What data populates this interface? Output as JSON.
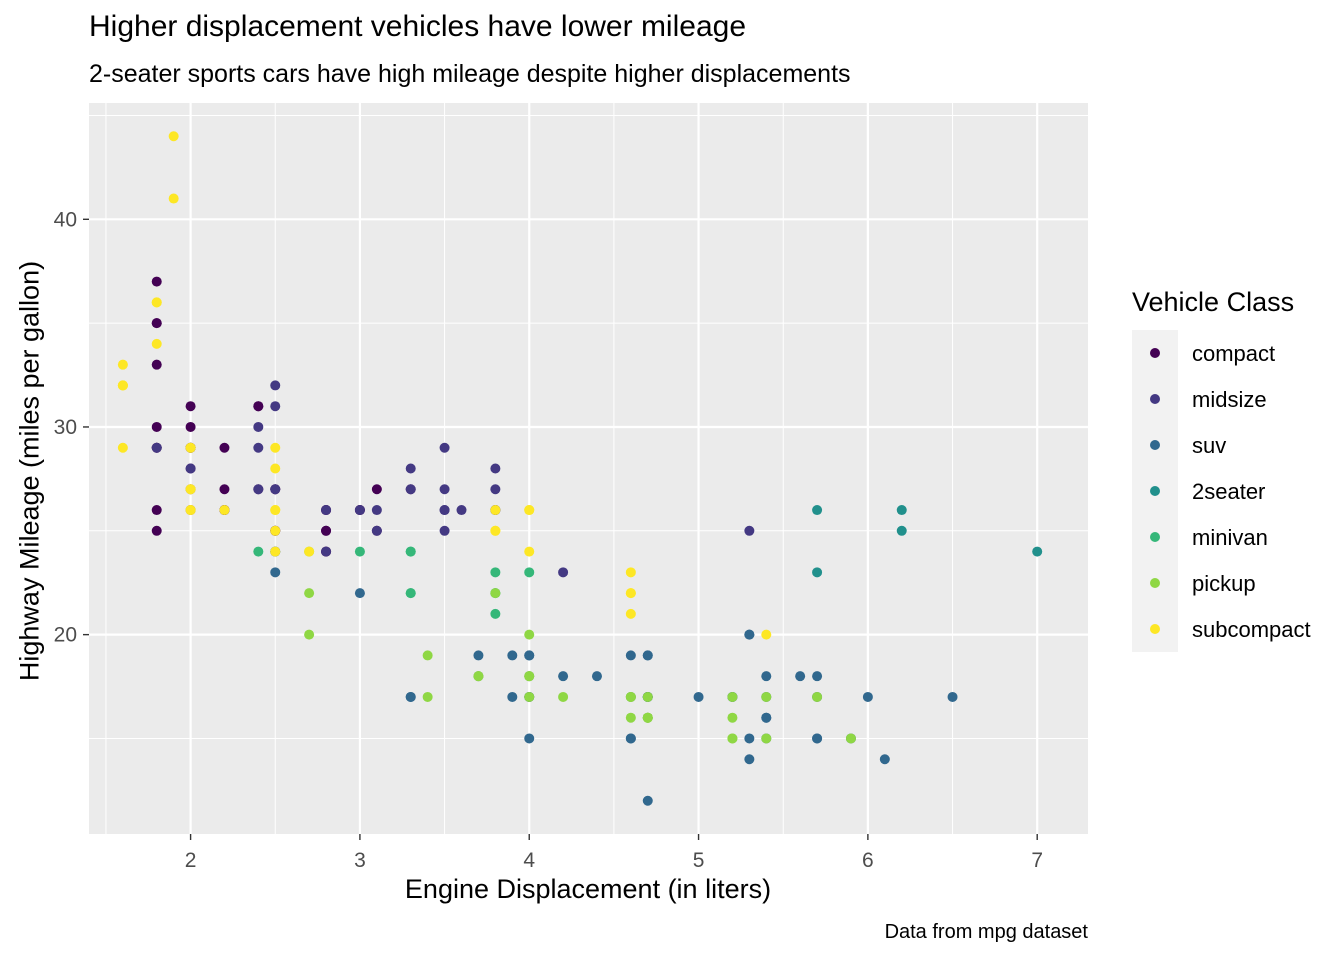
{
  "chart_data": {
    "type": "scatter",
    "title": "Higher displacement vehicles have lower mileage",
    "subtitle": "2-seater sports cars have high mileage despite higher displacements",
    "caption": "Data from mpg dataset",
    "xlabel": "Engine Displacement (in liters)",
    "ylabel": "Highway Mileage (miles per gallon)",
    "xlim": [
      1.4,
      7.3
    ],
    "ylim": [
      10.4,
      45.6
    ],
    "xticks": [
      2,
      3,
      4,
      5,
      6,
      7
    ],
    "yticks": [
      20,
      30,
      40
    ],
    "grid": true,
    "legend_title": "Vehicle Class",
    "legend_position": "right",
    "series": [
      {
        "name": "compact",
        "color": "#440154",
        "points": [
          [
            1.8,
            29
          ],
          [
            1.8,
            29
          ],
          [
            2.0,
            31
          ],
          [
            2.0,
            30
          ],
          [
            2.8,
            26
          ],
          [
            2.8,
            26
          ],
          [
            3.1,
            27
          ],
          [
            1.8,
            26
          ],
          [
            1.8,
            25
          ],
          [
            2.0,
            28
          ],
          [
            2.0,
            27
          ],
          [
            2.8,
            25
          ],
          [
            2.8,
            25
          ],
          [
            3.1,
            25
          ],
          [
            2.2,
            27
          ],
          [
            2.2,
            29
          ],
          [
            2.4,
            31
          ],
          [
            2.4,
            31
          ],
          [
            3.0,
            26
          ],
          [
            3.0,
            26
          ],
          [
            3.3,
            27
          ],
          [
            1.8,
            30
          ],
          [
            1.8,
            33
          ],
          [
            1.8,
            35
          ],
          [
            1.8,
            37
          ],
          [
            1.8,
            35
          ],
          [
            2.0,
            29
          ],
          [
            2.0,
            26
          ],
          [
            2.0,
            29
          ],
          [
            2.0,
            29
          ],
          [
            2.8,
            24
          ],
          [
            2.8,
            24
          ],
          [
            2.5,
            27
          ],
          [
            2.5,
            27
          ],
          [
            2.5,
            25
          ],
          [
            2.5,
            25
          ],
          [
            2.2,
            26
          ],
          [
            2.2,
            26
          ],
          [
            2.4,
            27
          ]
        ]
      },
      {
        "name": "midsize",
        "color": "#443983",
        "points": [
          [
            2.8,
            24
          ],
          [
            3.1,
            25
          ],
          [
            4.2,
            23
          ],
          [
            2.4,
            30
          ],
          [
            2.4,
            29
          ],
          [
            3.3,
            28
          ],
          [
            3.5,
            29
          ],
          [
            3.5,
            27
          ],
          [
            3.8,
            26
          ],
          [
            3.8,
            26
          ],
          [
            3.8,
            28
          ],
          [
            3.8,
            27
          ],
          [
            5.3,
            25
          ],
          [
            2.5,
            32
          ],
          [
            2.5,
            31
          ],
          [
            2.4,
            27
          ],
          [
            3.5,
            26
          ],
          [
            3.5,
            25
          ],
          [
            3.0,
            26
          ],
          [
            3.1,
            26
          ],
          [
            3.3,
            27
          ],
          [
            3.6,
            26
          ],
          [
            1.8,
            29
          ],
          [
            2.0,
            28
          ],
          [
            2.8,
            26
          ],
          [
            2.5,
            27
          ],
          [
            3.5,
            26
          ]
        ]
      },
      {
        "name": "suv",
        "color": "#31688E",
        "points": [
          [
            5.3,
            20
          ],
          [
            5.3,
            15
          ],
          [
            5.3,
            20
          ],
          [
            5.7,
            17
          ],
          [
            6.5,
            17
          ],
          [
            4.7,
            19
          ],
          [
            4.7,
            17
          ],
          [
            4.7,
            12
          ],
          [
            5.2,
            17
          ],
          [
            5.9,
            15
          ],
          [
            4.7,
            17
          ],
          [
            5.2,
            17
          ],
          [
            4.0,
            19
          ],
          [
            4.0,
            17
          ],
          [
            4.6,
            19
          ],
          [
            5.0,
            17
          ],
          [
            4.0,
            15
          ],
          [
            4.6,
            15
          ],
          [
            5.4,
            18
          ],
          [
            5.4,
            17
          ],
          [
            5.4,
            16
          ],
          [
            4.7,
            17
          ],
          [
            5.7,
            18
          ],
          [
            6.1,
            14
          ],
          [
            4.0,
            18
          ],
          [
            4.2,
            18
          ],
          [
            4.4,
            18
          ],
          [
            4.6,
            17
          ],
          [
            5.4,
            15
          ],
          [
            5.7,
            15
          ],
          [
            4.0,
            17
          ],
          [
            5.4,
            16
          ],
          [
            2.5,
            23
          ],
          [
            2.5,
            24
          ],
          [
            3.0,
            22
          ],
          [
            3.3,
            17
          ],
          [
            3.7,
            19
          ],
          [
            3.9,
            17
          ],
          [
            4.7,
            19
          ],
          [
            4.6,
            15
          ],
          [
            5.6,
            18
          ],
          [
            5.3,
            14
          ],
          [
            6.0,
            17
          ],
          [
            4.0,
            19
          ],
          [
            3.7,
            18
          ],
          [
            3.9,
            19
          ],
          [
            4.7,
            16
          ],
          [
            5.7,
            15
          ],
          [
            2.5,
            24
          ],
          [
            3.3,
            17
          ]
        ]
      },
      {
        "name": "2seater",
        "color": "#21908C",
        "points": [
          [
            5.7,
            26
          ],
          [
            5.7,
            23
          ],
          [
            6.2,
            26
          ],
          [
            6.2,
            25
          ],
          [
            7.0,
            24
          ]
        ]
      },
      {
        "name": "minivan",
        "color": "#35B779",
        "points": [
          [
            2.4,
            24
          ],
          [
            3.0,
            24
          ],
          [
            3.3,
            22
          ],
          [
            3.3,
            22
          ],
          [
            3.3,
            24
          ],
          [
            3.3,
            24
          ],
          [
            3.8,
            22
          ],
          [
            3.8,
            21
          ],
          [
            3.8,
            23
          ],
          [
            4.0,
            23
          ],
          [
            3.8,
            22
          ]
        ]
      },
      {
        "name": "pickup",
        "color": "#8FD744",
        "points": [
          [
            2.7,
            20
          ],
          [
            2.7,
            22
          ],
          [
            2.7,
            24
          ],
          [
            3.4,
            17
          ],
          [
            3.4,
            19
          ],
          [
            4.0,
            20
          ],
          [
            4.7,
            17
          ],
          [
            4.7,
            16
          ],
          [
            4.7,
            16
          ],
          [
            5.2,
            15
          ],
          [
            5.2,
            16
          ],
          [
            5.7,
            17
          ],
          [
            5.9,
            15
          ],
          [
            4.7,
            16
          ],
          [
            4.7,
            16
          ],
          [
            4.6,
            17
          ],
          [
            4.6,
            16
          ],
          [
            5.4,
            17
          ],
          [
            5.4,
            15
          ],
          [
            3.7,
            18
          ],
          [
            4.0,
            17
          ],
          [
            4.0,
            18
          ],
          [
            4.2,
            17
          ],
          [
            5.2,
            17
          ],
          [
            4.6,
            17
          ],
          [
            5.2,
            15
          ],
          [
            4.0,
            18
          ],
          [
            3.7,
            18
          ],
          [
            3.8,
            22
          ]
        ]
      },
      {
        "name": "subcompact",
        "color": "#FDE725",
        "points": [
          [
            3.8,
            26
          ],
          [
            3.8,
            25
          ],
          [
            4.0,
            26
          ],
          [
            4.0,
            24
          ],
          [
            4.6,
            21
          ],
          [
            4.6,
            22
          ],
          [
            4.6,
            23
          ],
          [
            5.4,
            20
          ],
          [
            1.6,
            33
          ],
          [
            1.6,
            32
          ],
          [
            1.6,
            32
          ],
          [
            1.6,
            29
          ],
          [
            1.6,
            32
          ],
          [
            1.8,
            34
          ],
          [
            1.8,
            36
          ],
          [
            1.8,
            36
          ],
          [
            2.0,
            29
          ],
          [
            2.0,
            26
          ],
          [
            2.0,
            27
          ],
          [
            1.9,
            44
          ],
          [
            2.0,
            29
          ],
          [
            2.0,
            26
          ],
          [
            2.5,
            29
          ],
          [
            2.5,
            26
          ],
          [
            2.5,
            28
          ],
          [
            1.9,
            41
          ],
          [
            2.2,
            26
          ],
          [
            2.5,
            24
          ],
          [
            2.5,
            26
          ],
          [
            2.7,
            24
          ],
          [
            3.8,
            25
          ],
          [
            4.0,
            26
          ],
          [
            4.6,
            22
          ],
          [
            2.0,
            27
          ],
          [
            2.5,
            25
          ]
        ]
      }
    ]
  }
}
